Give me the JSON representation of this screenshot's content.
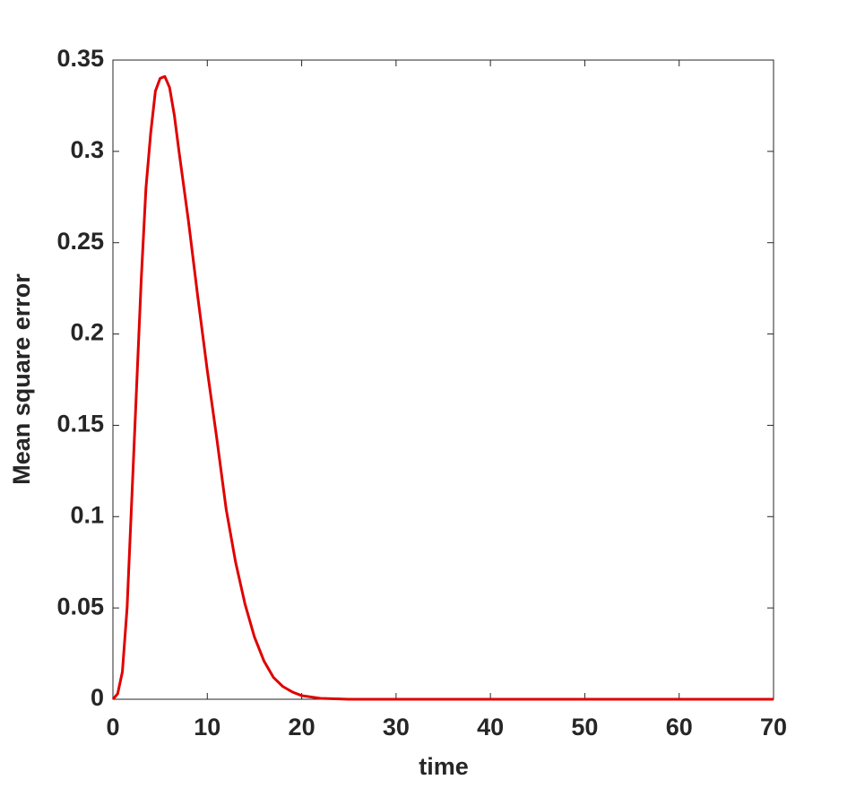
{
  "chart_data": {
    "type": "line",
    "xlabel": "time",
    "ylabel": "Mean square error",
    "x": [
      0,
      0.5,
      1,
      1.5,
      2,
      2.5,
      3,
      3.5,
      4,
      4.5,
      5,
      5.5,
      6,
      6.5,
      7,
      8,
      9,
      10,
      11,
      12,
      13,
      14,
      15,
      16,
      17,
      18,
      19,
      20,
      22,
      25,
      30,
      40,
      50,
      60,
      70
    ],
    "series": [
      {
        "name": "Mean square error",
        "color": "#e00000",
        "values": [
          0,
          0.003,
          0.015,
          0.05,
          0.11,
          0.17,
          0.23,
          0.28,
          0.31,
          0.333,
          0.34,
          0.341,
          0.335,
          0.32,
          0.3,
          0.262,
          0.22,
          0.18,
          0.143,
          0.104,
          0.075,
          0.052,
          0.034,
          0.021,
          0.012,
          0.007,
          0.004,
          0.002,
          0.0005,
          0,
          0,
          0,
          0,
          0,
          0
        ]
      }
    ],
    "xlim": [
      0,
      70
    ],
    "xticks": [
      0,
      10,
      20,
      30,
      40,
      50,
      60,
      70
    ],
    "ylim": [
      0,
      0.35
    ],
    "yticks": [
      0,
      0.05,
      0.1,
      0.15,
      0.2,
      0.25,
      0.3,
      0.35
    ]
  }
}
